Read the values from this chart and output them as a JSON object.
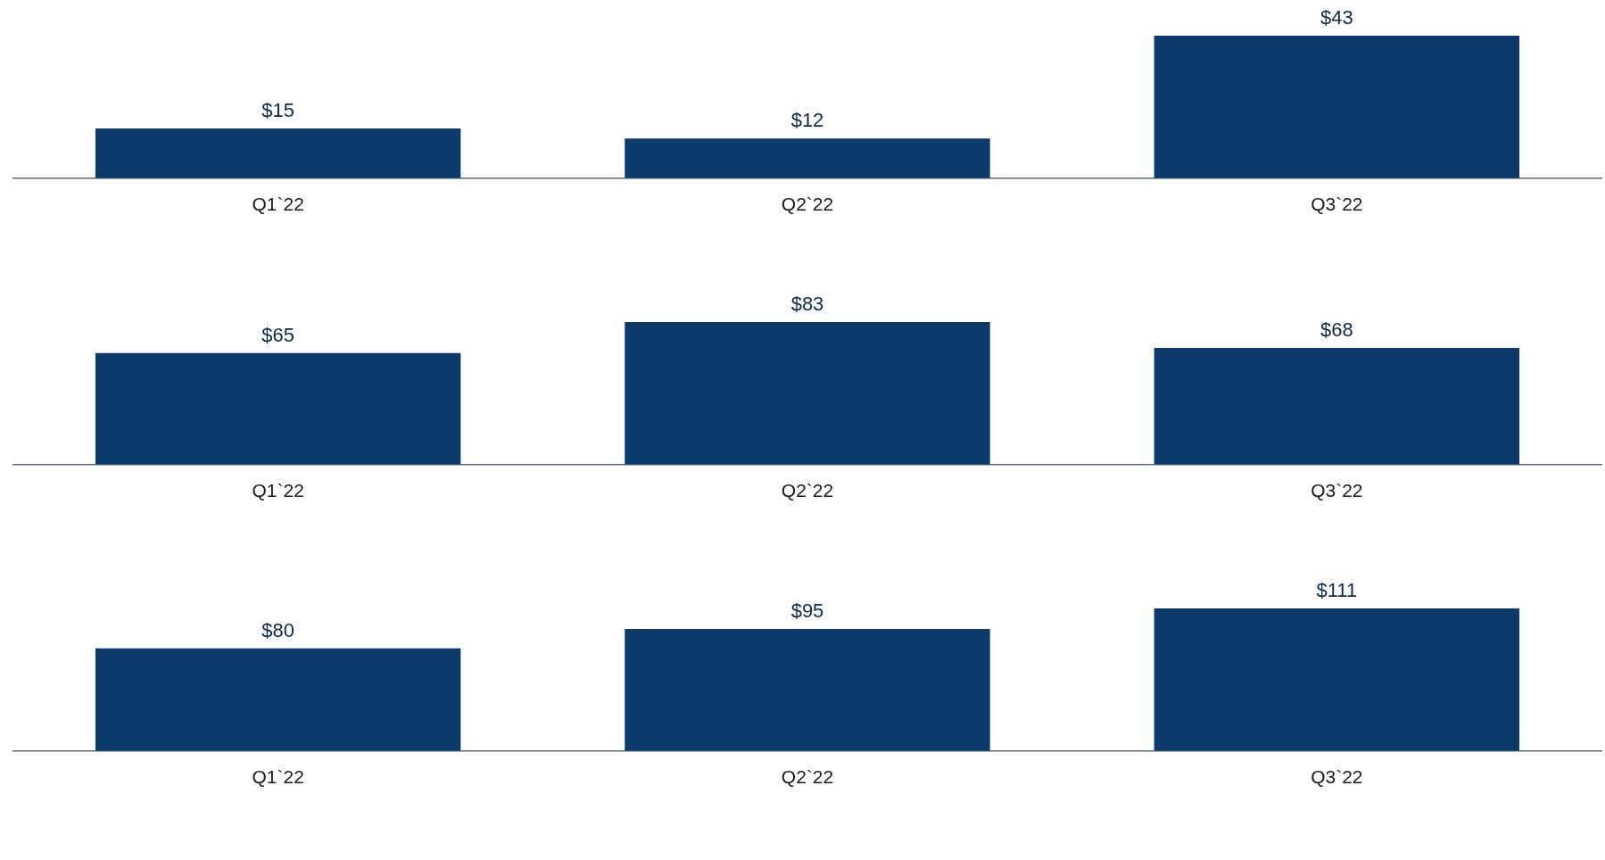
{
  "chart_data": [
    {
      "type": "bar",
      "categories": [
        "Q1`22",
        "Q2`22",
        "Q3`22"
      ],
      "values": [
        15,
        12,
        43
      ],
      "value_labels": [
        "$15",
        "$12",
        "$43"
      ],
      "color": "#0b3a6b",
      "grid": false,
      "legend": false,
      "tick_labels": "x"
    },
    {
      "type": "bar",
      "categories": [
        "Q1`22",
        "Q2`22",
        "Q3`22"
      ],
      "values": [
        65,
        83,
        68
      ],
      "value_labels": [
        "$65",
        "$83",
        "$68"
      ],
      "color": "#0b3a6b",
      "grid": false,
      "legend": false,
      "tick_labels": "x"
    },
    {
      "type": "bar",
      "categories": [
        "Q1`22",
        "Q2`22",
        "Q3`22"
      ],
      "values": [
        80,
        95,
        111
      ],
      "value_labels": [
        "$80",
        "$95",
        "$111"
      ],
      "color": "#0b3a6b",
      "grid": false,
      "legend": false,
      "tick_labels": "x"
    }
  ]
}
